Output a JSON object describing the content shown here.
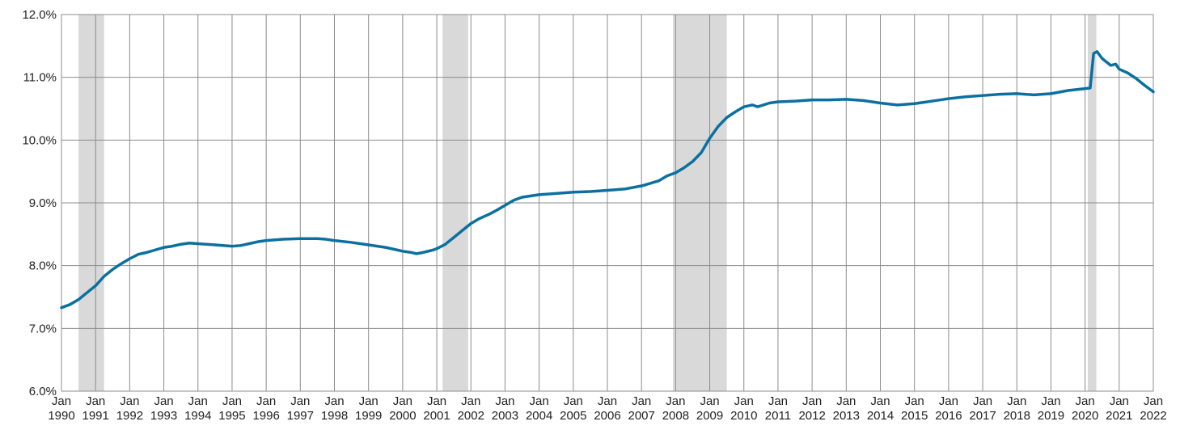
{
  "chart_data": {
    "type": "line",
    "title": "",
    "xlabel": "",
    "ylabel": "",
    "x_range": [
      1990.0,
      2022.0
    ],
    "ylim": [
      6.0,
      12.0
    ],
    "grid": true,
    "y_ticks": [
      {
        "value": 6.0,
        "label": "6.0%"
      },
      {
        "value": 7.0,
        "label": "7.0%"
      },
      {
        "value": 8.0,
        "label": "8.0%"
      },
      {
        "value": 9.0,
        "label": "9.0%"
      },
      {
        "value": 10.0,
        "label": "10.0%"
      },
      {
        "value": 11.0,
        "label": "11.0%"
      },
      {
        "value": 12.0,
        "label": "12.0%"
      }
    ],
    "x_ticks": [
      {
        "value": 1990,
        "line1": "Jan",
        "line2": "1990"
      },
      {
        "value": 1991,
        "line1": "Jan",
        "line2": "1991"
      },
      {
        "value": 1992,
        "line1": "Jan",
        "line2": "1992"
      },
      {
        "value": 1993,
        "line1": "Jan",
        "line2": "1993"
      },
      {
        "value": 1994,
        "line1": "Jan",
        "line2": "1994"
      },
      {
        "value": 1995,
        "line1": "Jan",
        "line2": "1995"
      },
      {
        "value": 1996,
        "line1": "Jan",
        "line2": "1996"
      },
      {
        "value": 1997,
        "line1": "Jan",
        "line2": "1997"
      },
      {
        "value": 1998,
        "line1": "Jan",
        "line2": "1998"
      },
      {
        "value": 1999,
        "line1": "Jan",
        "line2": "1999"
      },
      {
        "value": 2000,
        "line1": "Jan",
        "line2": "2000"
      },
      {
        "value": 2001,
        "line1": "Jan",
        "line2": "2001"
      },
      {
        "value": 2002,
        "line1": "Jan",
        "line2": "2002"
      },
      {
        "value": 2003,
        "line1": "Jan",
        "line2": "2003"
      },
      {
        "value": 2004,
        "line1": "Jan",
        "line2": "2004"
      },
      {
        "value": 2005,
        "line1": "Jan",
        "line2": "2005"
      },
      {
        "value": 2006,
        "line1": "Jan",
        "line2": "2006"
      },
      {
        "value": 2007,
        "line1": "Jan",
        "line2": "2007"
      },
      {
        "value": 2008,
        "line1": "Jan",
        "line2": "2008"
      },
      {
        "value": 2009,
        "line1": "Jan",
        "line2": "2009"
      },
      {
        "value": 2010,
        "line1": "Jan",
        "line2": "2010"
      },
      {
        "value": 2011,
        "line1": "Jan",
        "line2": "2011"
      },
      {
        "value": 2012,
        "line1": "Jan",
        "line2": "2012"
      },
      {
        "value": 2013,
        "line1": "Jan",
        "line2": "2013"
      },
      {
        "value": 2014,
        "line1": "Jan",
        "line2": "2014"
      },
      {
        "value": 2015,
        "line1": "Jan",
        "line2": "2015"
      },
      {
        "value": 2016,
        "line1": "Jan",
        "line2": "2016"
      },
      {
        "value": 2017,
        "line1": "Jan",
        "line2": "2017"
      },
      {
        "value": 2018,
        "line1": "Jan",
        "line2": "2018"
      },
      {
        "value": 2019,
        "line1": "Jan",
        "line2": "2019"
      },
      {
        "value": 2020,
        "line1": "Jan",
        "line2": "2020"
      },
      {
        "value": 2021,
        "line1": "Jan",
        "line2": "2021"
      },
      {
        "value": 2022,
        "line1": "Jan",
        "line2": "2022"
      }
    ],
    "shaded_periods": [
      {
        "start": 1990.5,
        "end": 1991.25
      },
      {
        "start": 2001.17,
        "end": 2001.92
      },
      {
        "start": 2007.92,
        "end": 2009.5
      },
      {
        "start": 2020.08,
        "end": 2020.33
      }
    ],
    "series": [
      {
        "color": "#0b70a0",
        "points": [
          [
            1990.0,
            7.33
          ],
          [
            1990.25,
            7.38
          ],
          [
            1990.5,
            7.46
          ],
          [
            1990.75,
            7.57
          ],
          [
            1991.0,
            7.68
          ],
          [
            1991.25,
            7.83
          ],
          [
            1991.5,
            7.94
          ],
          [
            1991.75,
            8.03
          ],
          [
            1992.0,
            8.11
          ],
          [
            1992.25,
            8.18
          ],
          [
            1992.5,
            8.21
          ],
          [
            1992.75,
            8.25
          ],
          [
            1993.0,
            8.29
          ],
          [
            1993.25,
            8.31
          ],
          [
            1993.5,
            8.34
          ],
          [
            1993.75,
            8.36
          ],
          [
            1994.0,
            8.35
          ],
          [
            1994.5,
            8.33
          ],
          [
            1995.0,
            8.31
          ],
          [
            1995.25,
            8.32
          ],
          [
            1995.5,
            8.35
          ],
          [
            1995.75,
            8.38
          ],
          [
            1996.0,
            8.4
          ],
          [
            1996.5,
            8.42
          ],
          [
            1997.0,
            8.43
          ],
          [
            1997.5,
            8.43
          ],
          [
            1997.75,
            8.42
          ],
          [
            1998.0,
            8.4
          ],
          [
            1998.5,
            8.37
          ],
          [
            1999.0,
            8.33
          ],
          [
            1999.5,
            8.29
          ],
          [
            2000.0,
            8.23
          ],
          [
            2000.25,
            8.21
          ],
          [
            2000.4,
            8.19
          ],
          [
            2000.6,
            8.21
          ],
          [
            2000.9,
            8.25
          ],
          [
            2001.0,
            8.27
          ],
          [
            2001.25,
            8.34
          ],
          [
            2001.5,
            8.45
          ],
          [
            2001.75,
            8.56
          ],
          [
            2002.0,
            8.67
          ],
          [
            2002.25,
            8.75
          ],
          [
            2002.5,
            8.81
          ],
          [
            2002.75,
            8.88
          ],
          [
            2003.0,
            8.96
          ],
          [
            2003.25,
            9.04
          ],
          [
            2003.5,
            9.09
          ],
          [
            2004.0,
            9.13
          ],
          [
            2004.5,
            9.15
          ],
          [
            2005.0,
            9.17
          ],
          [
            2005.5,
            9.18
          ],
          [
            2006.0,
            9.2
          ],
          [
            2006.5,
            9.22
          ],
          [
            2007.0,
            9.27
          ],
          [
            2007.5,
            9.35
          ],
          [
            2007.75,
            9.43
          ],
          [
            2008.0,
            9.48
          ],
          [
            2008.25,
            9.56
          ],
          [
            2008.5,
            9.66
          ],
          [
            2008.75,
            9.8
          ],
          [
            2009.0,
            10.03
          ],
          [
            2009.25,
            10.22
          ],
          [
            2009.5,
            10.36
          ],
          [
            2009.75,
            10.45
          ],
          [
            2010.0,
            10.53
          ],
          [
            2010.25,
            10.56
          ],
          [
            2010.4,
            10.53
          ],
          [
            2010.75,
            10.59
          ],
          [
            2011.0,
            10.61
          ],
          [
            2011.5,
            10.62
          ],
          [
            2012.0,
            10.64
          ],
          [
            2012.5,
            10.64
          ],
          [
            2013.0,
            10.65
          ],
          [
            2013.5,
            10.63
          ],
          [
            2014.0,
            10.59
          ],
          [
            2014.5,
            10.56
          ],
          [
            2015.0,
            10.58
          ],
          [
            2015.5,
            10.62
          ],
          [
            2016.0,
            10.66
          ],
          [
            2016.5,
            10.69
          ],
          [
            2017.0,
            10.71
          ],
          [
            2017.5,
            10.73
          ],
          [
            2018.0,
            10.74
          ],
          [
            2018.5,
            10.72
          ],
          [
            2019.0,
            10.74
          ],
          [
            2019.5,
            10.79
          ],
          [
            2020.0,
            10.82
          ],
          [
            2020.15,
            10.83
          ],
          [
            2020.25,
            11.38
          ],
          [
            2020.35,
            11.41
          ],
          [
            2020.5,
            11.3
          ],
          [
            2020.75,
            11.19
          ],
          [
            2020.9,
            11.21
          ],
          [
            2021.0,
            11.13
          ],
          [
            2021.25,
            11.07
          ],
          [
            2021.5,
            10.98
          ],
          [
            2021.75,
            10.87
          ],
          [
            2022.0,
            10.77
          ]
        ]
      }
    ]
  }
}
